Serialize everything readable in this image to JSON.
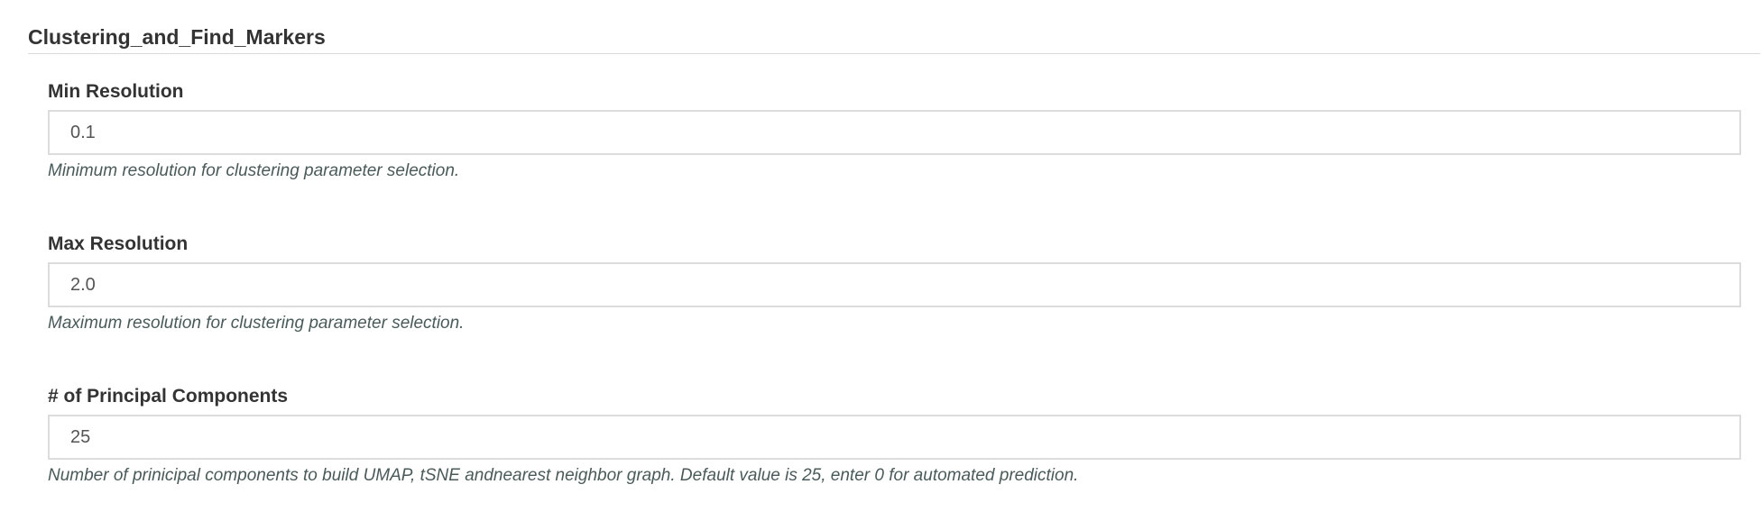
{
  "section": {
    "title": "Clustering_and_Find_Markers"
  },
  "fields": [
    {
      "label": "Min Resolution",
      "value": "0.1",
      "help": "Minimum resolution for clustering parameter selection."
    },
    {
      "label": "Max Resolution",
      "value": "2.0",
      "help": "Maximum resolution for clustering parameter selection."
    },
    {
      "label": "# of Principal Components",
      "value": "25",
      "help": "Number of prinicipal components to build UMAP, tSNE andnearest neighbor graph. Default value is 25, enter 0 for automated prediction."
    }
  ]
}
